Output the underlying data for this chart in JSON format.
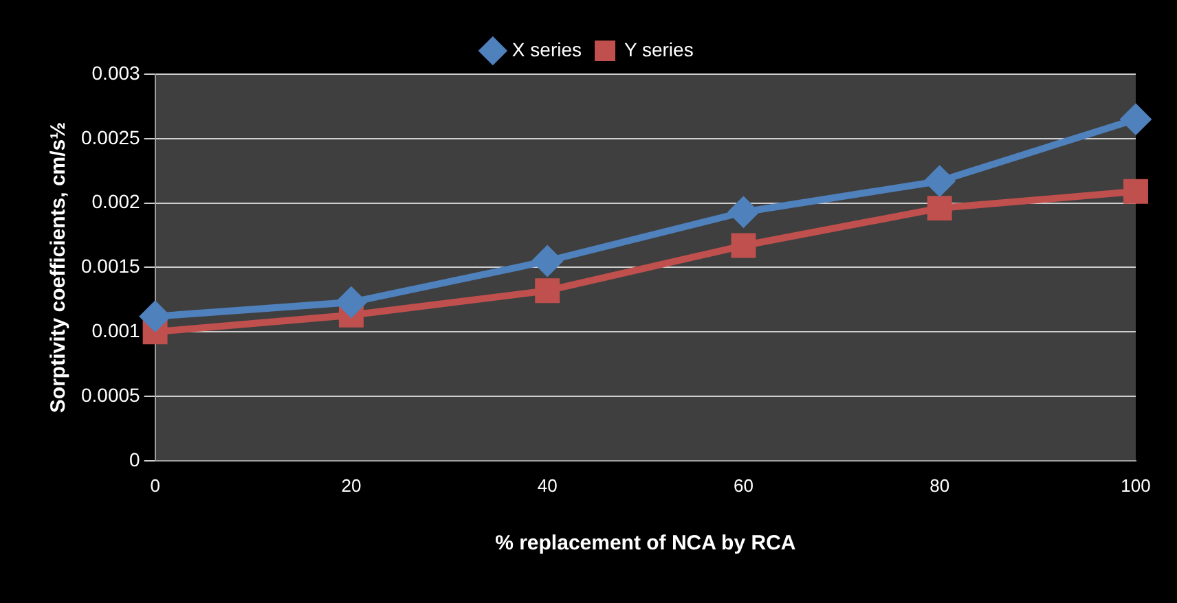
{
  "chart_data": {
    "type": "line",
    "xlabel": "% replacement of NCA by RCA",
    "ylabel": "Sorptivity coefficients, cm/s½",
    "categories": [
      "0",
      "20",
      "40",
      "60",
      "80",
      "100"
    ],
    "series": [
      {
        "name": "X series",
        "color": "#4f81bd",
        "marker": "diamond",
        "values": [
          0.00112,
          0.00123,
          0.00155,
          0.00193,
          0.00217,
          0.00265
        ]
      },
      {
        "name": "Y series",
        "color": "#c0504d",
        "marker": "square",
        "values": [
          0.001,
          0.00113,
          0.00132,
          0.00167,
          0.00196,
          0.00209
        ]
      }
    ],
    "ylim": [
      0,
      0.003
    ],
    "yticks": [
      0,
      0.0005,
      0.001,
      0.0015,
      0.002,
      0.0025,
      0.003
    ],
    "grid": "y",
    "legend": "top"
  }
}
